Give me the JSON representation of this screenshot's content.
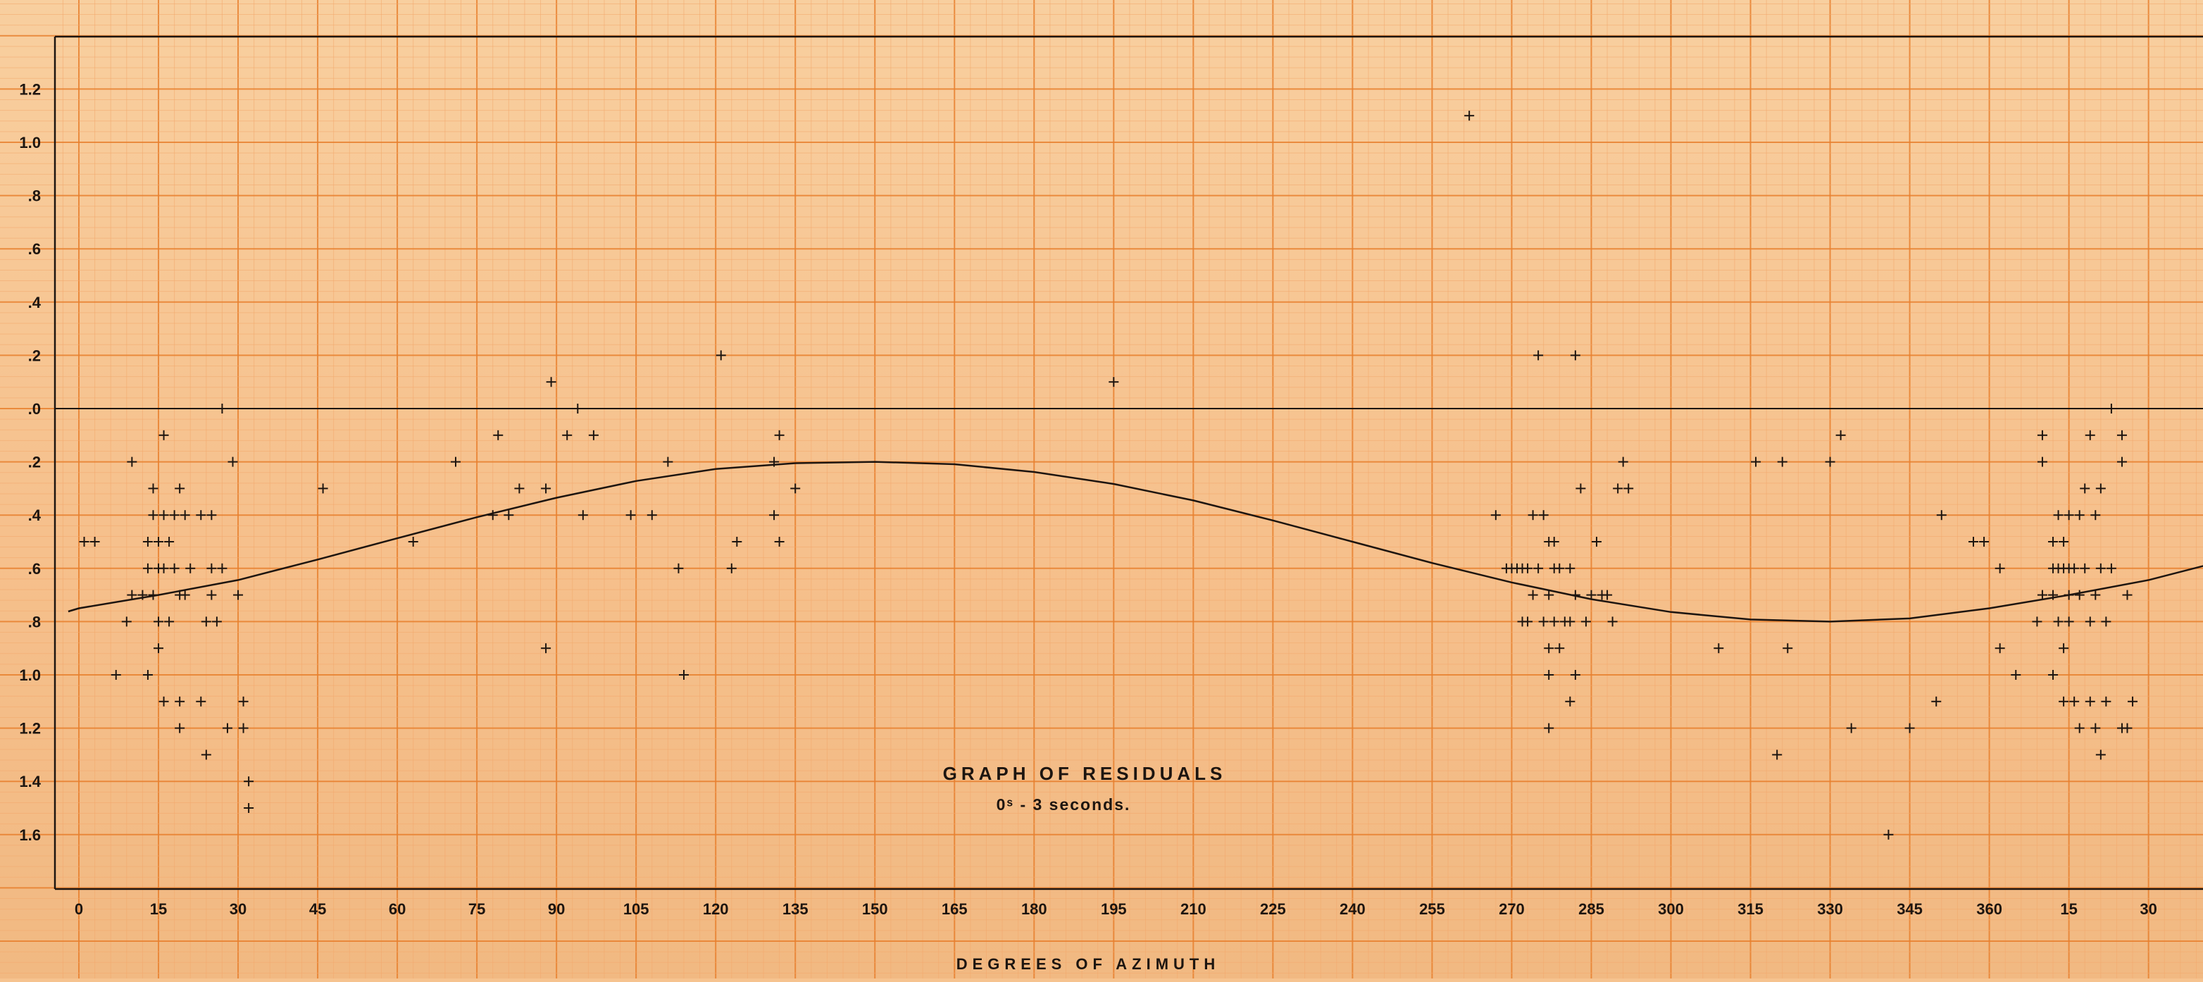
{
  "chart_data": {
    "type": "scatter",
    "title": "GRAPH OF RESIDUALS",
    "subtitle": "0ˢ - 3 seconds.",
    "xlabel": "DEGREES OF AZIMUTH",
    "ylabel": "",
    "x_tick_labels": [
      "0",
      "15",
      "30",
      "45",
      "60",
      "75",
      "90",
      "105",
      "120",
      "135",
      "150",
      "165",
      "180",
      "195",
      "210",
      "225",
      "240",
      "255",
      "270",
      "285",
      "300",
      "315",
      "330",
      "345",
      "360",
      "15",
      "30"
    ],
    "y_tick_labels": [
      {
        "value": 1.2,
        "label": "1.2"
      },
      {
        "value": 1.0,
        "label": "1.0"
      },
      {
        "value": 0.8,
        "label": ".8"
      },
      {
        "value": 0.6,
        "label": ".6"
      },
      {
        "value": 0.4,
        "label": ".4"
      },
      {
        "value": 0.2,
        "label": ".2"
      },
      {
        "value": 0.0,
        "label": ".0"
      },
      {
        "value": -0.2,
        "label": ".2"
      },
      {
        "value": -0.4,
        "label": ".4"
      },
      {
        "value": -0.6,
        "label": ".6"
      },
      {
        "value": -0.8,
        "label": ".8"
      },
      {
        "value": -1.0,
        "label": "1.0"
      },
      {
        "value": -1.2,
        "label": "1.2"
      },
      {
        "value": -1.4,
        "label": "1.4"
      },
      {
        "value": -1.6,
        "label": "1.6"
      }
    ],
    "xlim": [
      -2,
      405
    ],
    "ylim": [
      -1.8,
      1.4
    ],
    "grid": true,
    "legend": "none",
    "colors": {
      "grid_minor": "#f3a86c",
      "grid_major": "#e8802e",
      "ink": "#1d1510"
    },
    "series": [
      {
        "marker": "+",
        "points": [
          [
            1,
            -0.5
          ],
          [
            3,
            -0.5
          ],
          [
            7,
            -1.0
          ],
          [
            9,
            -0.8
          ],
          [
            10,
            -0.2
          ],
          [
            10,
            -0.7
          ],
          [
            12,
            -0.7
          ],
          [
            13,
            -0.5
          ],
          [
            13,
            -0.6
          ],
          [
            13,
            -1.0
          ],
          [
            14,
            -0.3
          ],
          [
            14,
            -0.4
          ],
          [
            14,
            -0.7
          ],
          [
            15,
            -0.5
          ],
          [
            15,
            -0.6
          ],
          [
            15,
            -0.8
          ],
          [
            15,
            -0.9
          ],
          [
            16,
            -0.1
          ],
          [
            16,
            -0.4
          ],
          [
            16,
            -0.6
          ],
          [
            16,
            -1.1
          ],
          [
            17,
            -0.5
          ],
          [
            17,
            -0.8
          ],
          [
            18,
            -0.4
          ],
          [
            18,
            -0.6
          ],
          [
            19,
            -0.3
          ],
          [
            19,
            -0.7
          ],
          [
            19,
            -1.1
          ],
          [
            19,
            -1.2
          ],
          [
            20,
            -0.4
          ],
          [
            20,
            -0.7
          ],
          [
            21,
            -0.6
          ],
          [
            23,
            -0.4
          ],
          [
            23,
            -1.1
          ],
          [
            24,
            -0.8
          ],
          [
            24,
            -1.3
          ],
          [
            25,
            -0.4
          ],
          [
            25,
            -0.6
          ],
          [
            25,
            -0.7
          ],
          [
            26,
            -0.8
          ],
          [
            27,
            0.0
          ],
          [
            27,
            -0.6
          ],
          [
            28,
            -1.2
          ],
          [
            29,
            -0.2
          ],
          [
            30,
            -0.7
          ],
          [
            31,
            -1.1
          ],
          [
            31,
            -1.2
          ],
          [
            32,
            -1.4
          ],
          [
            32,
            -1.5
          ],
          [
            46,
            -0.3
          ],
          [
            63,
            -0.5
          ],
          [
            71,
            -0.2
          ],
          [
            78,
            -0.4
          ],
          [
            79,
            -0.1
          ],
          [
            81,
            -0.4
          ],
          [
            83,
            -0.3
          ],
          [
            88,
            -0.3
          ],
          [
            88,
            -0.9
          ],
          [
            89,
            0.1
          ],
          [
            92,
            -0.1
          ],
          [
            94,
            0.0
          ],
          [
            95,
            -0.4
          ],
          [
            97,
            -0.1
          ],
          [
            104,
            -0.4
          ],
          [
            108,
            -0.4
          ],
          [
            111,
            -0.2
          ],
          [
            113,
            -0.6
          ],
          [
            114,
            -1.0
          ],
          [
            121,
            0.2
          ],
          [
            123,
            -0.6
          ],
          [
            124,
            -0.5
          ],
          [
            131,
            -0.2
          ],
          [
            131,
            -0.4
          ],
          [
            132,
            -0.1
          ],
          [
            132,
            -0.5
          ],
          [
            135,
            -0.3
          ],
          [
            195,
            0.1
          ],
          [
            262,
            1.1
          ],
          [
            267,
            -0.4
          ],
          [
            269,
            -0.6
          ],
          [
            270,
            -0.6
          ],
          [
            271,
            -0.6
          ],
          [
            272,
            -0.6
          ],
          [
            272,
            -0.8
          ],
          [
            273,
            -0.6
          ],
          [
            273,
            -0.8
          ],
          [
            274,
            -0.4
          ],
          [
            274,
            -0.7
          ],
          [
            275,
            0.2
          ],
          [
            275,
            -0.6
          ],
          [
            276,
            -0.4
          ],
          [
            276,
            -0.8
          ],
          [
            277,
            -0.5
          ],
          [
            277,
            -0.7
          ],
          [
            277,
            -0.9
          ],
          [
            277,
            -1.0
          ],
          [
            277,
            -1.2
          ],
          [
            278,
            -0.5
          ],
          [
            278,
            -0.6
          ],
          [
            278,
            -0.8
          ],
          [
            279,
            -0.6
          ],
          [
            279,
            -0.9
          ],
          [
            280,
            -0.8
          ],
          [
            281,
            -0.6
          ],
          [
            281,
            -0.8
          ],
          [
            281,
            -1.1
          ],
          [
            282,
            -0.7
          ],
          [
            282,
            -1.0
          ],
          [
            282,
            0.2
          ],
          [
            283,
            -0.3
          ],
          [
            284,
            -0.8
          ],
          [
            285,
            -0.7
          ],
          [
            286,
            -0.5
          ],
          [
            287,
            -0.7
          ],
          [
            288,
            -0.7
          ],
          [
            289,
            -0.8
          ],
          [
            290,
            -0.3
          ],
          [
            291,
            -0.2
          ],
          [
            292,
            -0.3
          ],
          [
            309,
            -0.9
          ],
          [
            316,
            -0.2
          ],
          [
            320,
            -1.3
          ],
          [
            321,
            -0.2
          ],
          [
            322,
            -0.9
          ],
          [
            330,
            -0.2
          ],
          [
            332,
            -0.1
          ],
          [
            334,
            -1.2
          ],
          [
            341,
            -1.6
          ],
          [
            345,
            -1.2
          ],
          [
            350,
            -1.1
          ],
          [
            351,
            -0.4
          ],
          [
            357,
            -0.5
          ],
          [
            359,
            -0.5
          ],
          [
            362,
            -0.6
          ],
          [
            362,
            -0.9
          ],
          [
            365,
            -1.0
          ],
          [
            369,
            -0.8
          ],
          [
            370,
            -0.1
          ],
          [
            370,
            -0.2
          ],
          [
            370,
            -0.7
          ],
          [
            372,
            -0.5
          ],
          [
            372,
            -0.6
          ],
          [
            372,
            -0.7
          ],
          [
            372,
            -1.0
          ],
          [
            373,
            -0.4
          ],
          [
            373,
            -0.6
          ],
          [
            373,
            -0.8
          ],
          [
            374,
            -0.5
          ],
          [
            374,
            -0.6
          ],
          [
            374,
            -0.9
          ],
          [
            374,
            -1.1
          ],
          [
            375,
            -0.4
          ],
          [
            375,
            -0.6
          ],
          [
            375,
            -0.7
          ],
          [
            375,
            -0.8
          ],
          [
            376,
            -0.6
          ],
          [
            376,
            -1.1
          ],
          [
            377,
            -0.4
          ],
          [
            377,
            -0.7
          ],
          [
            377,
            -1.2
          ],
          [
            378,
            -0.3
          ],
          [
            378,
            -0.6
          ],
          [
            379,
            -0.1
          ],
          [
            379,
            -0.8
          ],
          [
            379,
            -1.1
          ],
          [
            380,
            -0.4
          ],
          [
            380,
            -0.7
          ],
          [
            380,
            -1.2
          ],
          [
            381,
            -0.3
          ],
          [
            381,
            -0.6
          ],
          [
            381,
            -1.3
          ],
          [
            382,
            -0.8
          ],
          [
            382,
            -1.1
          ],
          [
            383,
            0.0
          ],
          [
            383,
            -0.6
          ],
          [
            385,
            -0.1
          ],
          [
            385,
            -0.2
          ],
          [
            385,
            -1.2
          ],
          [
            386,
            -0.7
          ],
          [
            386,
            -1.2
          ],
          [
            387,
            -1.1
          ]
        ]
      },
      {
        "type": "line",
        "style": "curve",
        "x": [
          -2,
          0,
          15,
          30,
          45,
          60,
          75,
          90,
          105,
          120,
          135,
          150,
          165,
          180,
          195,
          210,
          225,
          240,
          255,
          270,
          285,
          300,
          315,
          330,
          345,
          360,
          375,
          390,
          405
        ],
        "y": [
          -0.762,
          -0.75,
          -0.7,
          -0.644,
          -0.567,
          -0.487,
          -0.408,
          -0.335,
          -0.272,
          -0.227,
          -0.205,
          -0.2,
          -0.209,
          -0.238,
          -0.283,
          -0.345,
          -0.42,
          -0.5,
          -0.58,
          -0.653,
          -0.716,
          -0.764,
          -0.792,
          -0.8,
          -0.788,
          -0.75,
          -0.7,
          -0.644,
          -0.567
        ]
      }
    ]
  }
}
